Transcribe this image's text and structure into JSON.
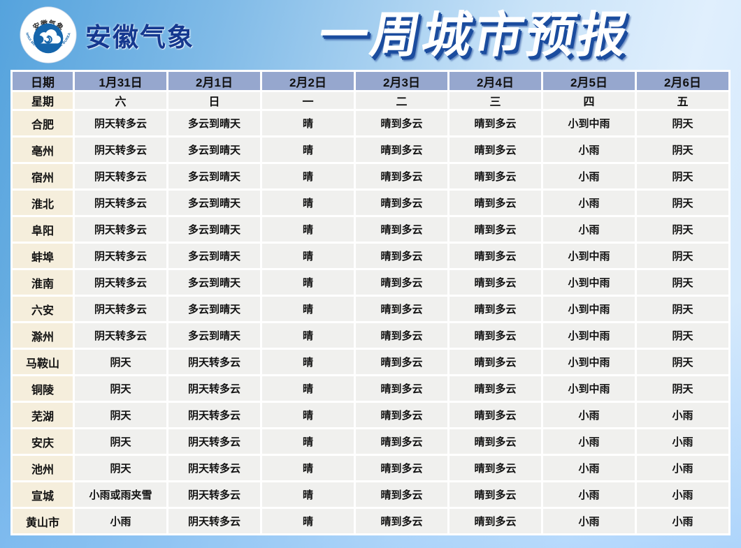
{
  "page": {
    "brand": "安徽气象",
    "title": "一周城市预报",
    "logo": {
      "top_text": "安徽气象",
      "bottom_text": "ANHUI METEOROLOGICAL BUREAU"
    }
  },
  "colors": {
    "title_shadow": "#1b4c9e",
    "brand_text": "#15388f",
    "header_bg": "#96a7ce",
    "cream_bg": "#f5eedc",
    "cell_bg": "#f0f0ee",
    "logo_blue": "#1565ab",
    "bg_top_left": "#55a3dd",
    "bg_bottom": "#b3d7fb",
    "bg_light": "#ddeefc"
  },
  "table": {
    "header_row": [
      "日期",
      "1月31日",
      "2月1日",
      "2月2日",
      "2月3日",
      "2月4日",
      "2月5日",
      "2月6日"
    ],
    "week_row": [
      "星期",
      "六",
      "日",
      "一",
      "二",
      "三",
      "四",
      "五"
    ],
    "rows": [
      {
        "city": "合肥",
        "values": [
          "阴天转多云",
          "多云到晴天",
          "晴",
          "晴到多云",
          "晴到多云",
          "小到中雨",
          "阴天"
        ]
      },
      {
        "city": "亳州",
        "values": [
          "阴天转多云",
          "多云到晴天",
          "晴",
          "晴到多云",
          "晴到多云",
          "小雨",
          "阴天"
        ]
      },
      {
        "city": "宿州",
        "values": [
          "阴天转多云",
          "多云到晴天",
          "晴",
          "晴到多云",
          "晴到多云",
          "小雨",
          "阴天"
        ]
      },
      {
        "city": "淮北",
        "values": [
          "阴天转多云",
          "多云到晴天",
          "晴",
          "晴到多云",
          "晴到多云",
          "小雨",
          "阴天"
        ]
      },
      {
        "city": "阜阳",
        "values": [
          "阴天转多云",
          "多云到晴天",
          "晴",
          "晴到多云",
          "晴到多云",
          "小雨",
          "阴天"
        ]
      },
      {
        "city": "蚌埠",
        "values": [
          "阴天转多云",
          "多云到晴天",
          "晴",
          "晴到多云",
          "晴到多云",
          "小到中雨",
          "阴天"
        ]
      },
      {
        "city": "淮南",
        "values": [
          "阴天转多云",
          "多云到晴天",
          "晴",
          "晴到多云",
          "晴到多云",
          "小到中雨",
          "阴天"
        ]
      },
      {
        "city": "六安",
        "values": [
          "阴天转多云",
          "多云到晴天",
          "晴",
          "晴到多云",
          "晴到多云",
          "小到中雨",
          "阴天"
        ]
      },
      {
        "city": "滁州",
        "values": [
          "阴天转多云",
          "多云到晴天",
          "晴",
          "晴到多云",
          "晴到多云",
          "小到中雨",
          "阴天"
        ]
      },
      {
        "city": "马鞍山",
        "values": [
          "阴天",
          "阴天转多云",
          "晴",
          "晴到多云",
          "晴到多云",
          "小到中雨",
          "阴天"
        ]
      },
      {
        "city": "铜陵",
        "values": [
          "阴天",
          "阴天转多云",
          "晴",
          "晴到多云",
          "晴到多云",
          "小到中雨",
          "阴天"
        ]
      },
      {
        "city": "芜湖",
        "values": [
          "阴天",
          "阴天转多云",
          "晴",
          "晴到多云",
          "晴到多云",
          "小雨",
          "小雨"
        ]
      },
      {
        "city": "安庆",
        "values": [
          "阴天",
          "阴天转多云",
          "晴",
          "晴到多云",
          "晴到多云",
          "小雨",
          "小雨"
        ]
      },
      {
        "city": "池州",
        "values": [
          "阴天",
          "阴天转多云",
          "晴",
          "晴到多云",
          "晴到多云",
          "小雨",
          "小雨"
        ]
      },
      {
        "city": "宣城",
        "values": [
          "小雨或雨夹雪",
          "阴天转多云",
          "晴",
          "晴到多云",
          "晴到多云",
          "小雨",
          "小雨"
        ]
      },
      {
        "city": "黄山市",
        "values": [
          "小雨",
          "阴天转多云",
          "晴",
          "晴到多云",
          "晴到多云",
          "小雨",
          "小雨"
        ]
      }
    ]
  }
}
